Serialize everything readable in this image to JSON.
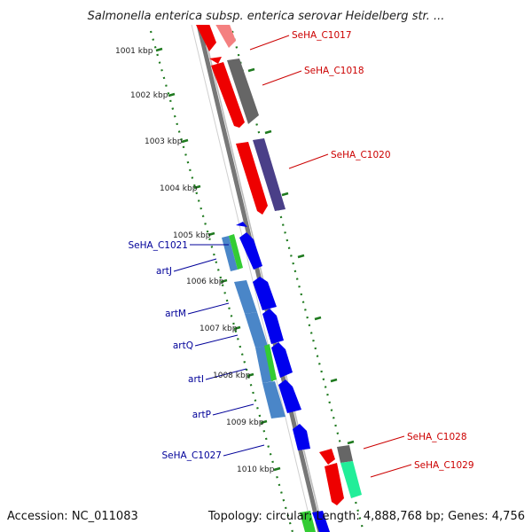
{
  "title": "Salmonella enterica subsp. enterica serovar Heidelberg str. ...",
  "footer": {
    "accession": "Accession: NC_011083",
    "summary": "Topology: circular; Length: 4,888,768 bp; Genes: 4,756"
  },
  "ruler": {
    "unit": "kbp",
    "ticks": [
      "1001 kbp",
      "1002 kbp",
      "1003 kbp",
      "1004 kbp",
      "1005 kbp",
      "1006 kbp",
      "1007 kbp",
      "1008 kbp",
      "1009 kbp",
      "1010 kbp"
    ]
  },
  "genes": [
    {
      "label": "SeHA_C1017",
      "color": "#cc0000",
      "side": "right"
    },
    {
      "label": "SeHA_C1018",
      "color": "#cc0000",
      "side": "right"
    },
    {
      "label": "SeHA_C1020",
      "color": "#cc0000",
      "side": "right"
    },
    {
      "label": "SeHA_C1021",
      "color": "#000099",
      "side": "left"
    },
    {
      "label": "artJ",
      "color": "#000099",
      "side": "left"
    },
    {
      "label": "artM",
      "color": "#000099",
      "side": "left"
    },
    {
      "label": "artQ",
      "color": "#000099",
      "side": "left"
    },
    {
      "label": "artI",
      "color": "#000099",
      "side": "left"
    },
    {
      "label": "artP",
      "color": "#000099",
      "side": "left"
    },
    {
      "label": "SeHA_C1027",
      "color": "#000099",
      "side": "left"
    },
    {
      "label": "SeHA_C1028",
      "color": "#cc0000",
      "side": "right"
    },
    {
      "label": "SeHA_C1029",
      "color": "#cc0000",
      "side": "right"
    }
  ],
  "colors": {
    "forward_gene": "#0000ee",
    "reverse_gene": "#ee0000",
    "ruler_dots": "#228822",
    "backbone": "#888888"
  }
}
